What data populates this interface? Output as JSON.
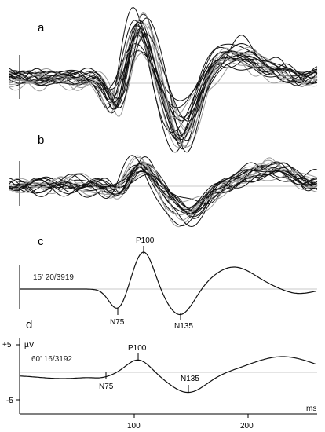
{
  "chart_data": [
    {
      "type": "line",
      "panel": "a",
      "description_note": "",
      "overlay_trials": true,
      "n_traces": 22
    },
    {
      "type": "line",
      "panel": "b",
      "overlay_trials": true,
      "n_traces": 20
    },
    {
      "type": "line",
      "panel": "c",
      "condition_label": "15' 20/3919",
      "peaks": [
        {
          "label": "N75",
          "x": 87
        },
        {
          "label": "P100",
          "x": 109
        },
        {
          "label": "N135",
          "x": 141
        }
      ]
    },
    {
      "type": "line",
      "panel": "d",
      "condition_label": "60' 16/3192",
      "peaks": [
        {
          "label": "N75",
          "x": 76
        },
        {
          "label": "P100",
          "x": 103
        },
        {
          "label": "N135",
          "x": 148
        }
      ],
      "y_ticks": [
        "+5",
        "-5"
      ],
      "y_unit": "µV",
      "x_ticks": [
        "100",
        "200"
      ],
      "x_unit": "ms",
      "x_range": [
        0,
        260
      ]
    }
  ],
  "labels": {
    "a": "a",
    "b": "b",
    "c": "c",
    "d": "d",
    "c_cond": "15' 20/3919",
    "d_cond": "60' 16/3192",
    "c_n75": "N75",
    "c_p100": "P100",
    "c_n135": "N135",
    "d_n75": "N75",
    "d_p100": "P100",
    "d_n135": "N135",
    "y_plus": "+5",
    "y_unit": "µV",
    "y_minus": "-5",
    "x_100": "100",
    "x_200": "200",
    "x_unit": "ms"
  }
}
